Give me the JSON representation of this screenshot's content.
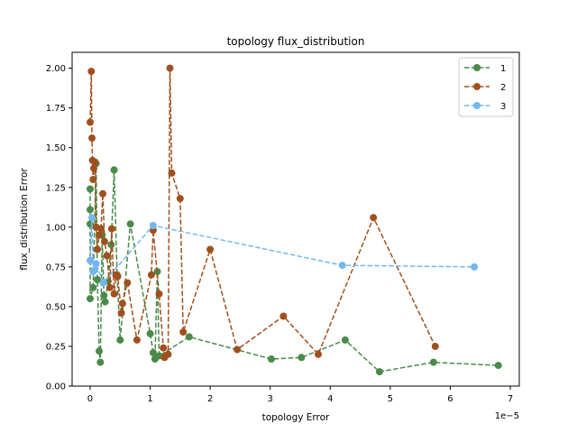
{
  "chart_data": {
    "type": "line",
    "title": "topology flux_distribution",
    "xlabel": "topology Error",
    "ylabel": "flux_distribution Error",
    "x_offset_text": "1e−5",
    "x_scale": 1e-05,
    "xlim": [
      -3e-06,
      7.15e-05
    ],
    "ylim": [
      0.0,
      2.1
    ],
    "x_ticks": [
      0,
      1e-05,
      2e-05,
      3e-05,
      4e-05,
      5e-05,
      6e-05,
      7e-05
    ],
    "x_tick_labels": [
      "0",
      "1",
      "2",
      "3",
      "4",
      "5",
      "6",
      "7"
    ],
    "y_ticks": [
      0.0,
      0.25,
      0.5,
      0.75,
      1.0,
      1.25,
      1.5,
      1.75,
      2.0
    ],
    "y_tick_labels": [
      "0.00",
      "0.25",
      "0.50",
      "0.75",
      "1.00",
      "1.25",
      "1.50",
      "1.75",
      "2.00"
    ],
    "grid": false,
    "legend_position": "top-right",
    "series": [
      {
        "name": "1",
        "color": "#4a8a4a",
        "points": [
          [
            0.0,
            1.24
          ],
          [
            0.0,
            1.11
          ],
          [
            0.0,
            1.02
          ],
          [
            0.0,
            0.55
          ],
          [
            5e-07,
            0.62
          ],
          [
            1e-06,
            1.4
          ],
          [
            1.2e-06,
            0.67
          ],
          [
            1.5e-06,
            0.22
          ],
          [
            1.7e-06,
            0.15
          ],
          [
            2e-06,
            0.95
          ],
          [
            2.3e-06,
            0.57
          ],
          [
            2.5e-06,
            0.53
          ],
          [
            3e-06,
            0.66
          ],
          [
            3.5e-06,
            0.89
          ],
          [
            4e-06,
            1.36
          ],
          [
            4.5e-06,
            0.7
          ],
          [
            5e-06,
            0.29
          ],
          [
            6.7e-06,
            1.02
          ],
          [
            1e-05,
            0.33
          ],
          [
            1.05e-05,
            0.21
          ],
          [
            1.08e-05,
            0.17
          ],
          [
            1.12e-05,
            0.72
          ],
          [
            1.15e-05,
            0.19
          ],
          [
            1.65e-05,
            0.31
          ],
          [
            3.02e-05,
            0.17
          ],
          [
            3.52e-05,
            0.18
          ],
          [
            4.25e-05,
            0.29
          ],
          [
            4.82e-05,
            0.09
          ],
          [
            5.72e-05,
            0.15
          ],
          [
            6.8e-05,
            0.13
          ]
        ]
      },
      {
        "name": "2",
        "color": "#a0501e",
        "points": [
          [
            0.0,
            1.66
          ],
          [
            2e-07,
            1.98
          ],
          [
            3e-07,
            1.56
          ],
          [
            4e-07,
            1.42
          ],
          [
            5e-07,
            1.3
          ],
          [
            6e-07,
            1.37
          ],
          [
            8e-07,
            1.41
          ],
          [
            1e-06,
            1.0
          ],
          [
            1.2e-06,
            0.86
          ],
          [
            1.5e-06,
            0.95
          ],
          [
            1.8e-06,
            0.99
          ],
          [
            2.1e-06,
            1.21
          ],
          [
            2.4e-06,
            0.91
          ],
          [
            2.8e-06,
            0.82
          ],
          [
            3.3e-06,
            0.62
          ],
          [
            3.6e-06,
            0.99
          ],
          [
            4e-06,
            0.58
          ],
          [
            4.3e-06,
            0.7
          ],
          [
            4.6e-06,
            0.69
          ],
          [
            5.2e-06,
            0.46
          ],
          [
            5.4e-06,
            0.52
          ],
          [
            6.2e-06,
            0.65
          ],
          [
            7.8e-06,
            0.29
          ],
          [
            1.02e-05,
            0.7
          ],
          [
            1.05e-05,
            0.98
          ],
          [
            1.15e-05,
            0.58
          ],
          [
            1.22e-05,
            0.24
          ],
          [
            1.24e-05,
            0.18
          ],
          [
            1.3e-05,
            0.2
          ],
          [
            1.33e-05,
            2.0
          ],
          [
            1.36e-05,
            1.34
          ],
          [
            1.5e-05,
            1.18
          ],
          [
            1.55e-05,
            0.34
          ],
          [
            2e-05,
            0.86
          ],
          [
            2.45e-05,
            0.23
          ],
          [
            3.22e-05,
            0.44
          ],
          [
            3.8e-05,
            0.2
          ],
          [
            4.72e-05,
            1.06
          ],
          [
            5.75e-05,
            0.25
          ]
        ]
      },
      {
        "name": "3",
        "color": "#74b7ef",
        "points": [
          [
            0.0,
            0.79
          ],
          [
            3e-07,
            1.06
          ],
          [
            5e-07,
            0.72
          ],
          [
            7e-07,
            0.73
          ],
          [
            1e-06,
            0.77
          ],
          [
            2.2e-06,
            0.65
          ],
          [
            1.05e-05,
            1.01
          ],
          [
            4.2e-05,
            0.76
          ],
          [
            6.4e-05,
            0.75
          ]
        ]
      }
    ]
  }
}
